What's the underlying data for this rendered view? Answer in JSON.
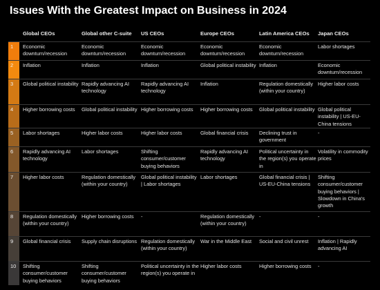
{
  "chart_data": {
    "type": "table",
    "title": "Issues With the Greatest Impact on Business in 2024",
    "columns": [
      "Global CEOs",
      "Global other C-suite",
      "US CEOs",
      "Europe CEOs",
      "Latin America CEOs",
      "Japan CEOs"
    ],
    "ranks": [
      "1",
      "2",
      "3",
      "4",
      "5",
      "6",
      "7",
      "8",
      "9",
      "10"
    ],
    "rows": [
      [
        "Economic downturn/recession",
        "Economic downturn/recession",
        "Economic downturn/recession",
        "Economic downturn/recession",
        "Economic downturn/recession",
        "Labor shortages"
      ],
      [
        "Inflation",
        "Inflation",
        "Inflation",
        "Global political instability",
        "Inflation",
        "Economic downturn/recession"
      ],
      [
        "Global political instability",
        "Rapidly advancing AI technology",
        "Rapidly advancing AI technology",
        "Inflation",
        "Regulation domestically (within your country)",
        "Higher labor costs"
      ],
      [
        "Higher borrowing costs",
        "Global political instability",
        "Higher borrowing costs",
        "Higher borrowing costs",
        "Global political instability",
        "Global political instability | US-EU-China tensions"
      ],
      [
        "Labor shortages",
        "Higher labor costs",
        "Higher labor costs",
        "Global financial crisis",
        "Declining trust in government",
        "-"
      ],
      [
        "Rapidly advancing AI technology",
        "Labor shortages",
        "Shifting consumer/customer buying behaviors",
        "Rapidly advancing AI technology",
        "Political uncertainty in the region(s) you operate in",
        "Volatility in commodity prices"
      ],
      [
        "Higher labor costs",
        "Regulation domestically (within your country)",
        "Global political instability | Labor shortages",
        "Labor shortages",
        "Global financial crisis | US-EU-China tensions",
        "Shifting consumer/customer buying behaviors | Slowdown in China's growth"
      ],
      [
        "Regulation domestically (within your country)",
        "Higher borrowing costs",
        "-",
        "Regulation domestically (within your country)",
        "-",
        "-"
      ],
      [
        "Global financial crisis",
        "Supply chain disruptions",
        "Regulation domestically (within your country)",
        "War in the Middle East",
        "Social and civil unrest",
        "Inflation | Rapidly advancing AI"
      ],
      [
        "Shifting consumer/customer buying behaviors",
        "Shifting consumer/customer buying behaviors",
        "Political uncertainty in the region(s) you operate in",
        "Higher labor costs",
        "Higher borrowing costs",
        "-"
      ]
    ]
  },
  "colors": {
    "background": "#000000",
    "rank_strip": [
      "#f07d0c",
      "#f38a0f",
      "#d47a14",
      "#b86c19",
      "#9a6122",
      "#83582a",
      "#6b4e31",
      "#564536",
      "#463f38",
      "#3a3838"
    ]
  }
}
